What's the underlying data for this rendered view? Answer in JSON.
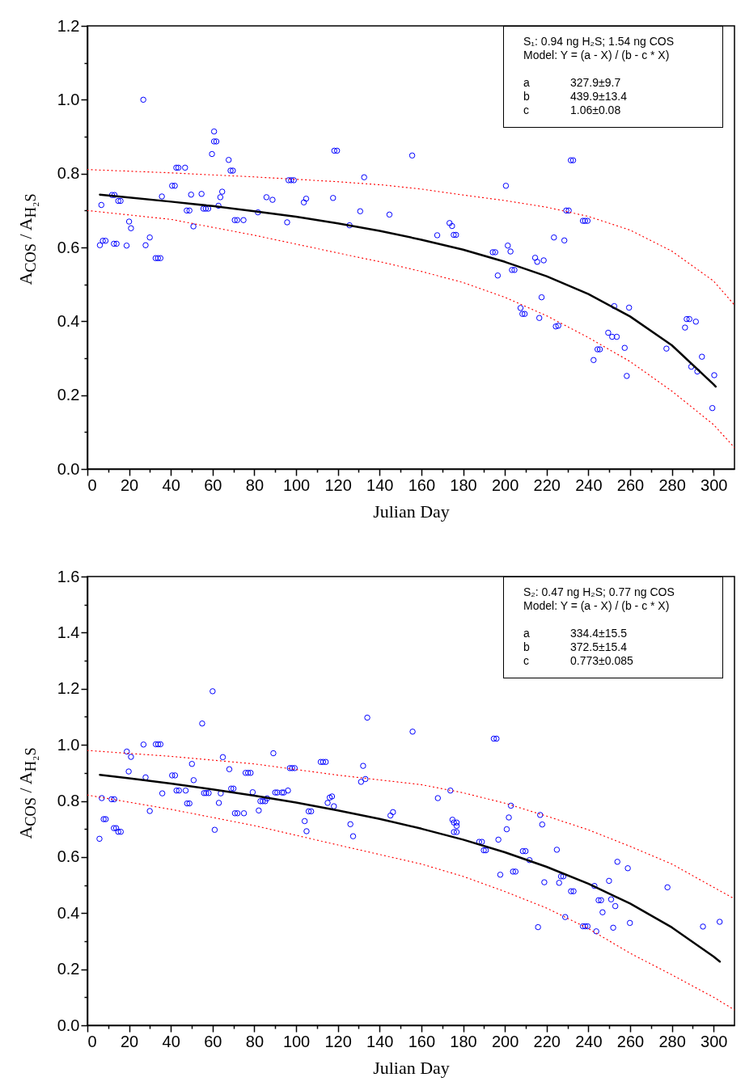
{
  "chart_data": [
    {
      "type": "scatter",
      "xlabel": "Julian Day",
      "ylabel": "A$_{COS}$ / A$_{H₂S}$",
      "marker": "circle",
      "xlim": [
        0,
        310
      ],
      "ylim": [
        0,
        1.2
      ],
      "xticks": [
        0,
        {
          "value": 10,
          "label": null
        },
        20,
        {
          "value": 30,
          "label": null
        },
        40,
        {
          "value": 50,
          "label": null
        },
        60,
        {
          "value": 70,
          "label": null
        },
        80,
        {
          "value": 90,
          "label": null
        },
        100,
        {
          "value": 110,
          "label": null
        },
        120,
        {
          "value": 130,
          "label": null
        },
        140,
        {
          "value": 150,
          "label": null
        },
        160,
        {
          "value": 170,
          "label": null
        },
        180,
        {
          "value": 190,
          "label": null
        },
        200,
        {
          "value": 210,
          "label": null
        },
        220,
        {
          "value": 230,
          "label": null
        },
        240,
        {
          "value": 250,
          "label": null
        },
        260,
        {
          "value": 270,
          "label": null
        },
        280,
        {
          "value": 290,
          "label": null
        },
        300
      ],
      "yticks": [
        {
          "value": 0,
          "label": "0.0"
        },
        {
          "value": 0.1,
          "label": null
        },
        0.2,
        {
          "value": 0.3,
          "label": null
        },
        0.4,
        {
          "value": 0.5,
          "label": null
        },
        0.6,
        {
          "value": 0.7,
          "label": null
        },
        0.8,
        {
          "value": 0.9,
          "label": null
        },
        {
          "value": 1,
          "label": "1.0"
        },
        {
          "value": 1.1,
          "label": null
        },
        1.2
      ],
      "annotations": [
        "S₁: 0.94 ng H₂S; 1.54 ng COS",
        "Model: Y = (a - X) / (b - c * X)",
        "a",
        "327.9±9.7",
        "b",
        "439.9±13.4",
        "c",
        "1.06±0.08"
      ],
      "series": [
        {
          "type": "scatter",
          "color": "#0000ff",
          "x": [
            6.0,
            6.7,
            7.4,
            8.7,
            11.8,
            13.0,
            12.7,
            14.0,
            14.8,
            15.9,
            18.8,
            20.0,
            20.9,
            26.8,
            27.9,
            29.9,
            32.7,
            33.8,
            35.0,
            35.7,
            40.6,
            41.9,
            42.6,
            43.6,
            46.8,
            47.6,
            48.9,
            49.7,
            50.8,
            54.7,
            55.6,
            56.7,
            57.9,
            59.7,
            60.7,
            60.7,
            61.8,
            62.8,
            63.7,
            64.6,
            67.7,
            68.6,
            69.7,
            70.6,
            71.8,
            74.8,
            81.7,
            85.8,
            88.7,
            95.7,
            96.4,
            97.6,
            98.9,
            103.7,
            104.8,
            117.7,
            118.3,
            119.6,
            125.6,
            130.7,
            132.6,
            144.7,
            155.6,
            167.6,
            173.5,
            174.7,
            175.5,
            176.6,
            194.2,
            195.4,
            196.6,
            200.5,
            201.4,
            202.7,
            203.4,
            204.6,
            207.5,
            208.4,
            209.5,
            214.5,
            215.5,
            216.5,
            217.6,
            218.6,
            223.5,
            224.4,
            225.6,
            228.5,
            229.4,
            230.6,
            231.6,
            232.7,
            237.4,
            238.4,
            239.6,
            242.5,
            244.4,
            245.5,
            249.5,
            251.4,
            253.6,
            252.4,
            257.4,
            258.4,
            259.5,
            277.4,
            286.3,
            287.1,
            288.4,
            291.5,
            289.3,
            292.2,
            294.4,
            299.4,
            300.3
          ],
          "values": [
            0.606,
            0.715,
            0.618,
            0.618,
            0.742,
            0.742,
            0.61,
            0.61,
            0.726,
            0.726,
            0.605,
            0.67,
            0.652,
            1.0,
            0.606,
            0.627,
            0.571,
            0.571,
            0.571,
            0.738,
            0.767,
            0.767,
            0.816,
            0.816,
            0.816,
            0.7,
            0.7,
            0.743,
            0.657,
            0.745,
            0.705,
            0.705,
            0.705,
            0.853,
            0.914,
            0.887,
            0.887,
            0.713,
            0.736,
            0.751,
            0.837,
            0.808,
            0.808,
            0.674,
            0.674,
            0.674,
            0.695,
            0.736,
            0.729,
            0.668,
            0.782,
            0.782,
            0.782,
            0.722,
            0.732,
            0.734,
            0.862,
            0.862,
            0.66,
            0.698,
            0.79,
            0.689,
            0.849,
            0.633,
            0.666,
            0.658,
            0.634,
            0.634,
            0.587,
            0.587,
            0.524,
            0.767,
            0.605,
            0.589,
            0.539,
            0.539,
            0.436,
            0.42,
            0.42,
            0.572,
            0.561,
            0.409,
            0.465,
            0.565,
            0.627,
            0.386,
            0.388,
            0.619,
            0.7,
            0.7,
            0.836,
            0.836,
            0.672,
            0.672,
            0.672,
            0.295,
            0.324,
            0.324,
            0.369,
            0.358,
            0.358,
            0.441,
            0.328,
            0.252,
            0.437,
            0.326,
            0.383,
            0.406,
            0.406,
            0.399,
            0.277,
            0.264,
            0.304,
            0.165,
            0.254
          ]
        },
        {
          "type": "line",
          "color": "#000000",
          "marker": "none",
          "line_style": "solid",
          "x": [
            6,
            20,
            40,
            60,
            80,
            100,
            120,
            140,
            160,
            180,
            200,
            220,
            240,
            260,
            280,
            300,
            301
          ],
          "values": [
            0.743,
            0.735,
            0.724,
            0.712,
            0.698,
            0.683,
            0.665,
            0.645,
            0.621,
            0.594,
            0.561,
            0.522,
            0.474,
            0.413,
            0.335,
            0.229,
            0.223
          ]
        },
        {
          "type": "line",
          "color": "#ff0000",
          "marker": "none",
          "line_style": "dotted",
          "x": [
            0,
            40,
            80,
            120,
            142,
            160,
            180,
            200,
            220,
            240,
            260,
            280,
            300,
            310
          ],
          "values": [
            0.811,
            0.802,
            0.791,
            0.778,
            0.769,
            0.758,
            0.742,
            0.727,
            0.709,
            0.684,
            0.647,
            0.59,
            0.509,
            0.444
          ]
        },
        {
          "type": "line",
          "color": "#ff0000",
          "marker": "none",
          "line_style": "dotted",
          "x": [
            0,
            40,
            80,
            120,
            142,
            160,
            180,
            200,
            220,
            240,
            260,
            280,
            300,
            310
          ],
          "values": [
            0.7,
            0.676,
            0.633,
            0.585,
            0.559,
            0.535,
            0.505,
            0.465,
            0.415,
            0.356,
            0.291,
            0.211,
            0.12,
            0.058
          ]
        }
      ]
    },
    {
      "type": "scatter",
      "xlabel": "Julian Day",
      "ylabel": "A$_{COS}$ / A$_{H₂S}$",
      "marker": "circle",
      "xlim": [
        0,
        310
      ],
      "ylim": [
        0,
        1.6
      ],
      "xticks": [
        0,
        {
          "value": 10,
          "label": null
        },
        20,
        {
          "value": 30,
          "label": null
        },
        40,
        {
          "value": 50,
          "label": null
        },
        60,
        {
          "value": 70,
          "label": null
        },
        80,
        {
          "value": 90,
          "label": null
        },
        100,
        {
          "value": 110,
          "label": null
        },
        120,
        {
          "value": 130,
          "label": null
        },
        140,
        {
          "value": 150,
          "label": null
        },
        160,
        {
          "value": 170,
          "label": null
        },
        180,
        {
          "value": 190,
          "label": null
        },
        200,
        {
          "value": 210,
          "label": null
        },
        220,
        {
          "value": 230,
          "label": null
        },
        240,
        {
          "value": 250,
          "label": null
        },
        260,
        {
          "value": 270,
          "label": null
        },
        280,
        {
          "value": 290,
          "label": null
        },
        300
      ],
      "yticks": [
        {
          "value": 0,
          "label": "0.0"
        },
        {
          "value": 0.1,
          "label": null
        },
        0.2,
        {
          "value": 0.3,
          "label": null
        },
        0.4,
        {
          "value": 0.5,
          "label": null
        },
        0.6,
        {
          "value": 0.7,
          "label": null
        },
        0.8,
        {
          "value": 0.9,
          "label": null
        },
        {
          "value": 1,
          "label": "1.0"
        },
        {
          "value": 1.1,
          "label": null
        },
        1.2,
        {
          "value": 1.3,
          "label": null
        },
        1.4,
        {
          "value": 1.5,
          "label": null
        },
        1.6
      ],
      "annotations": [
        "S₂: 0.47 ng H₂S; 0.77 ng COS",
        "Model: Y = (a - X) / (b - c * X)",
        "a",
        "334.4±15.5",
        "b",
        "372.5±15.4",
        "c",
        "0.773±0.085"
      ],
      "series": [
        {
          "type": "scatter",
          "color": "#0000ff",
          "x": [
            5.8,
            6.9,
            7.8,
            8.8,
            11.6,
            12.9,
            12.7,
            13.8,
            14.8,
            16.0,
            18.9,
            19.8,
            20.9,
            26.9,
            27.9,
            29.9,
            32.8,
            33.9,
            35.0,
            35.9,
            40.6,
            42.0,
            42.7,
            43.9,
            47.1,
            47.8,
            48.9,
            50.1,
            50.9,
            55.0,
            55.9,
            56.9,
            58.1,
            60.0,
            61.0,
            63.0,
            63.9,
            64.9,
            68.0,
            68.9,
            70.0,
            70.7,
            71.9,
            75.0,
            75.8,
            77.0,
            78.2,
            79.2,
            82.1,
            82.9,
            84.0,
            85.2,
            86.1,
            89.1,
            90.0,
            91.0,
            93.2,
            94.1,
            96.1,
            97.0,
            98.1,
            99.3,
            104.1,
            105.0,
            106.0,
            107.2,
            111.8,
            112.9,
            114.2,
            115.1,
            116.1,
            117.2,
            118.1,
            126.0,
            127.3,
            131.1,
            132.1,
            133.2,
            134.1,
            145.2,
            146.4,
            155.8,
            167.9,
            173.9,
            174.9,
            175.6,
            176.9,
            176.9,
            175.6,
            176.9,
            187.7,
            189.0,
            189.9,
            190.9,
            194.7,
            196.0,
            196.9,
            197.8,
            200.9,
            201.9,
            202.9,
            203.9,
            205.1,
            208.6,
            209.9,
            211.8,
            215.9,
            216.9,
            217.9,
            218.9,
            224.9,
            226.0,
            226.9,
            228.0,
            228.9,
            231.7,
            232.9,
            237.4,
            238.5,
            239.6,
            242.9,
            243.8,
            244.9,
            246.1,
            246.8,
            249.9,
            250.9,
            251.9,
            252.9,
            253.9,
            258.9,
            259.9,
            277.9,
            294.9,
            302.9
          ],
          "values": [
            0.665,
            0.81,
            0.735,
            0.735,
            0.806,
            0.806,
            0.703,
            0.703,
            0.69,
            0.69,
            0.976,
            0.905,
            0.957,
            1.001,
            0.884,
            0.764,
            1.002,
            1.002,
            1.002,
            0.827,
            0.891,
            0.891,
            0.837,
            0.837,
            0.837,
            0.791,
            0.791,
            0.932,
            0.874,
            1.076,
            0.828,
            0.828,
            0.828,
            1.191,
            0.697,
            0.793,
            0.827,
            0.956,
            0.913,
            0.844,
            0.844,
            0.756,
            0.756,
            0.756,
            0.9,
            0.9,
            0.9,
            0.831,
            0.766,
            0.799,
            0.799,
            0.799,
            0.809,
            0.97,
            0.83,
            0.83,
            0.83,
            0.83,
            0.837,
            0.917,
            0.917,
            0.917,
            0.728,
            0.692,
            0.763,
            0.763,
            0.939,
            0.939,
            0.939,
            0.793,
            0.812,
            0.816,
            0.781,
            0.717,
            0.674,
            0.868,
            0.925,
            0.878,
            1.097,
            0.748,
            0.76,
            1.047,
            0.81,
            0.837,
            0.733,
            0.723,
            0.723,
            0.711,
            0.689,
            0.689,
            0.654,
            0.654,
            0.624,
            0.624,
            1.022,
            1.022,
            0.662,
            0.537,
            0.699,
            0.741,
            0.783,
            0.548,
            0.548,
            0.621,
            0.621,
            0.589,
            0.35,
            0.75,
            0.716,
            0.51,
            0.626,
            0.508,
            0.531,
            0.531,
            0.386,
            0.478,
            0.478,
            0.353,
            0.353,
            0.353,
            0.497,
            0.335,
            0.446,
            0.446,
            0.403,
            0.515,
            0.449,
            0.348,
            0.425,
            0.583,
            0.56,
            0.365,
            0.492,
            0.352,
            0.369
          ]
        },
        {
          "type": "line",
          "color": "#000000",
          "marker": "none",
          "line_style": "solid",
          "x": [
            6,
            20,
            40,
            60,
            80,
            100,
            120,
            140,
            160,
            180,
            200,
            220,
            240,
            260,
            280,
            300,
            303
          ],
          "values": [
            0.893,
            0.881,
            0.862,
            0.841,
            0.819,
            0.794,
            0.766,
            0.736,
            0.701,
            0.662,
            0.617,
            0.565,
            0.505,
            0.434,
            0.349,
            0.245,
            0.227
          ]
        },
        {
          "type": "line",
          "color": "#ff0000",
          "marker": "none",
          "line_style": "dotted",
          "x": [
            0,
            40,
            80,
            120,
            160,
            180,
            200,
            220,
            240,
            260,
            280,
            300,
            310
          ],
          "values": [
            0.98,
            0.959,
            0.932,
            0.892,
            0.858,
            0.829,
            0.792,
            0.746,
            0.697,
            0.638,
            0.575,
            0.492,
            0.451
          ]
        },
        {
          "type": "line",
          "color": "#ff0000",
          "marker": "none",
          "line_style": "dotted",
          "x": [
            0,
            40,
            80,
            120,
            160,
            180,
            200,
            220,
            240,
            260,
            280,
            300,
            310
          ],
          "values": [
            0.821,
            0.77,
            0.712,
            0.643,
            0.575,
            0.531,
            0.477,
            0.418,
            0.345,
            0.257,
            0.18,
            0.1,
            0.055
          ]
        }
      ]
    }
  ]
}
